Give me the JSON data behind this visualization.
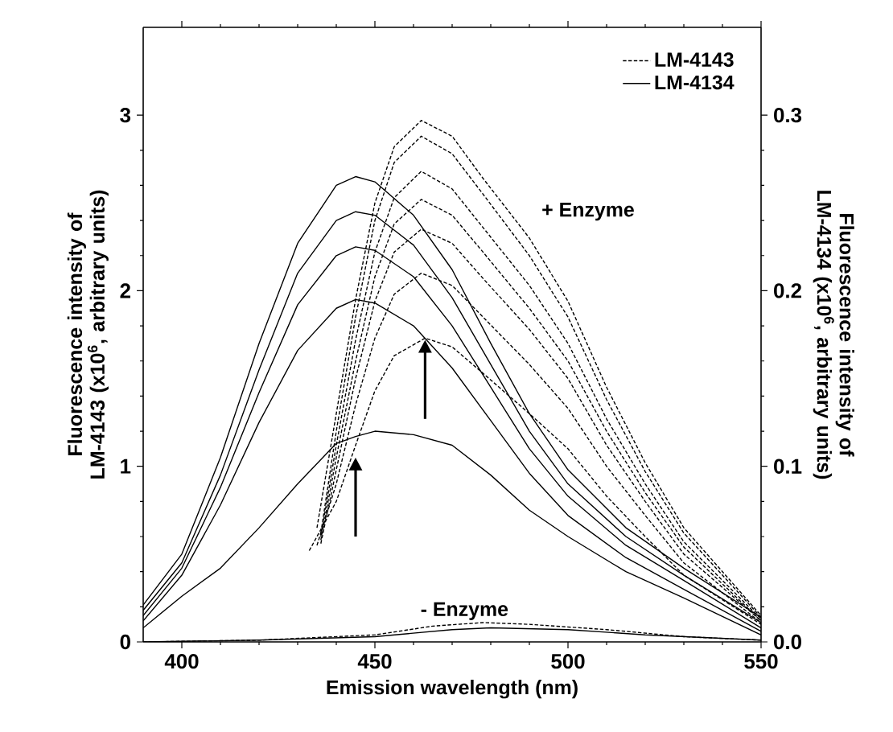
{
  "chart_data": {
    "type": "line",
    "xlabel": "Emission wavelength (nm)",
    "ylabel": "Fluorescence intensity of LM-4143 (x10$^{6}$, arbitrary units)",
    "y2label": "Fluorescence intensity of LM-4134 (x10$^{6}$, arbitrary units)",
    "xlim": [
      390,
      550
    ],
    "xticks": [
      400,
      450,
      500,
      550
    ],
    "ylim": [
      0,
      3.5
    ],
    "yticks": [
      0,
      1,
      2,
      3
    ],
    "y2lim": [
      0,
      0.35
    ],
    "y2ticks": [
      {
        "value": 0,
        "label": "0.0"
      },
      0.1,
      0.2,
      0.3
    ],
    "legend": "top right",
    "marker": "none",
    "annotations": [
      "+ Enzyme",
      "- Enzyme"
    ],
    "series": [
      {
        "name": "LM-4143",
        "color": "#000000",
        "line_style": "dashed",
        "x": [
          435,
          440,
          445,
          450,
          455,
          462,
          470,
          478,
          490,
          500,
          510,
          520,
          530,
          540,
          550
        ],
        "values": [
          0.65,
          1.3,
          1.95,
          2.5,
          2.82,
          2.97,
          2.88,
          2.64,
          2.3,
          1.94,
          1.45,
          1.02,
          0.65,
          0.4,
          0.15
        ]
      },
      {
        "color": "#000000",
        "line_style": "dashed",
        "x": [
          436,
          440,
          445,
          450,
          455,
          462,
          470,
          478,
          490,
          500,
          510,
          520,
          530,
          540,
          550
        ],
        "values": [
          0.62,
          1.2,
          1.85,
          2.4,
          2.73,
          2.88,
          2.78,
          2.55,
          2.2,
          1.85,
          1.38,
          0.97,
          0.62,
          0.38,
          0.14
        ]
      },
      {
        "color": "#000000",
        "line_style": "dashed",
        "x": [
          436,
          440,
          445,
          450,
          455,
          462,
          470,
          478,
          490,
          500,
          510,
          520,
          530,
          540,
          550
        ],
        "values": [
          0.6,
          1.12,
          1.72,
          2.22,
          2.53,
          2.68,
          2.58,
          2.36,
          2.03,
          1.7,
          1.27,
          0.9,
          0.57,
          0.35,
          0.13
        ]
      },
      {
        "color": "#000000",
        "line_style": "dashed",
        "x": [
          436,
          440,
          445,
          450,
          455,
          462,
          470,
          478,
          490,
          500,
          510,
          520,
          530,
          540,
          550
        ],
        "values": [
          0.58,
          1.05,
          1.6,
          2.08,
          2.38,
          2.52,
          2.43,
          2.22,
          1.9,
          1.6,
          1.2,
          0.85,
          0.54,
          0.33,
          0.12
        ]
      },
      {
        "color": "#000000",
        "line_style": "dashed",
        "x": [
          436,
          440,
          445,
          450,
          455,
          462,
          470,
          478,
          490,
          500,
          510,
          520,
          530,
          540,
          550
        ],
        "values": [
          0.56,
          0.98,
          1.5,
          1.94,
          2.22,
          2.35,
          2.27,
          2.07,
          1.78,
          1.5,
          1.12,
          0.8,
          0.5,
          0.31,
          0.12
        ]
      },
      {
        "color": "#000000",
        "line_style": "dashed",
        "x": [
          435,
          440,
          445,
          450,
          455,
          462,
          470,
          478,
          490,
          500,
          510,
          520,
          530,
          540,
          550
        ],
        "values": [
          0.55,
          0.9,
          1.35,
          1.73,
          1.98,
          2.1,
          2.03,
          1.85,
          1.58,
          1.33,
          1.0,
          0.72,
          0.45,
          0.28,
          0.11
        ]
      },
      {
        "color": "#000000",
        "line_style": "dashed",
        "x": [
          433,
          440,
          445,
          450,
          455,
          463,
          470,
          478,
          490,
          500,
          510,
          520,
          530,
          540,
          550
        ],
        "values": [
          0.52,
          0.8,
          1.12,
          1.43,
          1.63,
          1.73,
          1.68,
          1.53,
          1.3,
          1.1,
          0.83,
          0.6,
          0.38,
          0.24,
          0.1
        ]
      },
      {
        "color": "#000000",
        "line_style": "dashed",
        "x": [
          390,
          420,
          450,
          465,
          478,
          490,
          510,
          530,
          550
        ],
        "values": [
          0,
          0.01,
          0.04,
          0.09,
          0.11,
          0.1,
          0.07,
          0.03,
          0.01
        ]
      },
      {
        "name": "LM-4134",
        "color": "#000000",
        "line_style": "solid",
        "axis": "y2",
        "x": [
          390,
          400,
          410,
          420,
          430,
          440,
          445,
          450,
          460,
          470,
          480,
          490,
          500,
          515,
          530,
          550
        ],
        "values": [
          0.021,
          0.05,
          0.105,
          0.17,
          0.227,
          0.26,
          0.265,
          0.262,
          0.243,
          0.212,
          0.17,
          0.13,
          0.098,
          0.065,
          0.042,
          0.014
        ]
      },
      {
        "color": "#000000",
        "line_style": "solid",
        "axis": "y2",
        "x": [
          390,
          400,
          410,
          420,
          430,
          440,
          445,
          450,
          460,
          470,
          480,
          490,
          500,
          515,
          530,
          550
        ],
        "values": [
          0.018,
          0.045,
          0.095,
          0.155,
          0.21,
          0.24,
          0.245,
          0.243,
          0.226,
          0.196,
          0.158,
          0.12,
          0.09,
          0.06,
          0.038,
          0.011
        ]
      },
      {
        "color": "#000000",
        "line_style": "solid",
        "axis": "y2",
        "x": [
          390,
          400,
          410,
          420,
          430,
          440,
          445,
          450,
          460,
          470,
          480,
          490,
          500,
          515,
          530,
          550
        ],
        "values": [
          0.015,
          0.042,
          0.088,
          0.142,
          0.192,
          0.22,
          0.225,
          0.223,
          0.208,
          0.18,
          0.145,
          0.11,
          0.083,
          0.055,
          0.035,
          0.008
        ]
      },
      {
        "color": "#000000",
        "line_style": "solid",
        "axis": "y2",
        "x": [
          390,
          400,
          410,
          420,
          430,
          440,
          445,
          450,
          460,
          470,
          480,
          490,
          500,
          515,
          530,
          550
        ],
        "values": [
          0.012,
          0.038,
          0.078,
          0.125,
          0.166,
          0.19,
          0.195,
          0.193,
          0.18,
          0.156,
          0.126,
          0.096,
          0.072,
          0.048,
          0.03,
          0.006
        ]
      },
      {
        "color": "#000000",
        "line_style": "solid",
        "axis": "y2",
        "x": [
          390,
          400,
          410,
          420,
          430,
          440,
          445,
          450,
          460,
          470,
          480,
          490,
          500,
          515,
          530,
          550
        ],
        "values": [
          0.008,
          0.026,
          0.042,
          0.065,
          0.09,
          0.113,
          0.117,
          0.12,
          0.118,
          0.112,
          0.095,
          0.075,
          0.06,
          0.04,
          0.025,
          0.004
        ]
      },
      {
        "color": "#000000",
        "line_style": "solid",
        "axis": "y2",
        "x": [
          390,
          420,
          450,
          470,
          480,
          500,
          520,
          550
        ],
        "values": [
          0,
          0.001,
          0.003,
          0.007,
          0.008,
          0.007,
          0.004,
          0.001
        ]
      }
    ]
  }
}
